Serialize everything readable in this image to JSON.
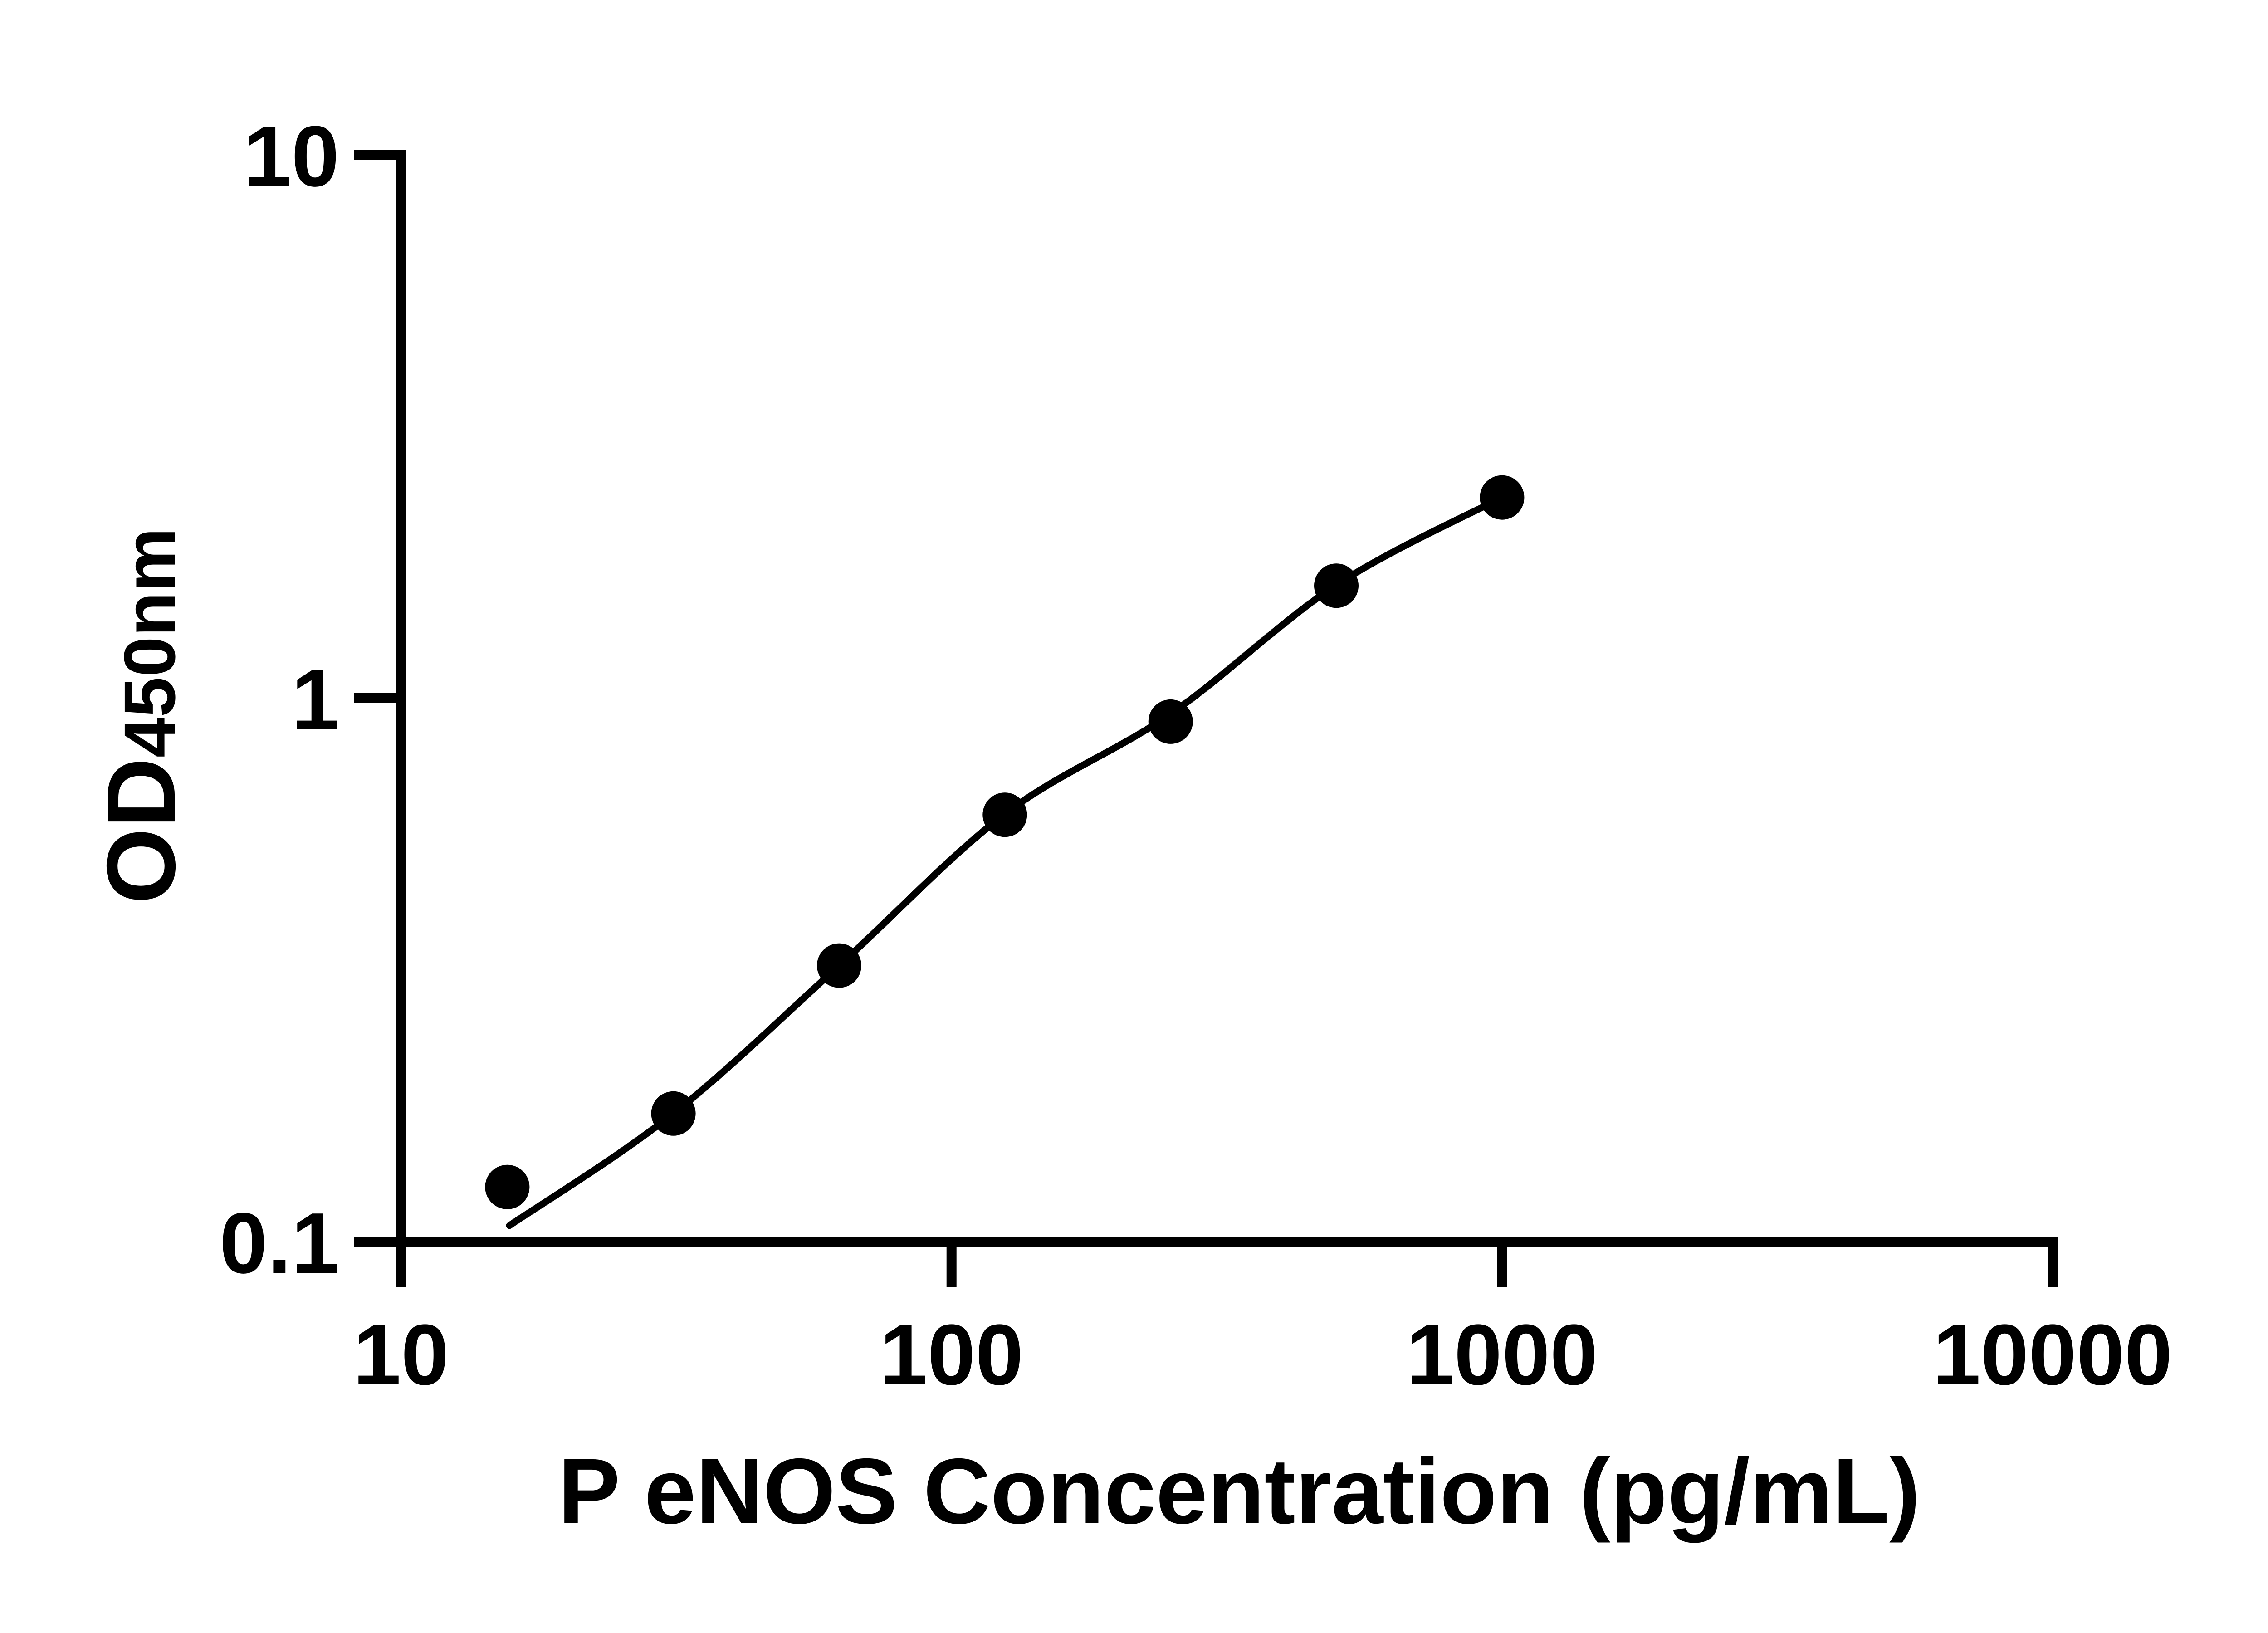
{
  "figure": {
    "background_color": "#ffffff",
    "ink_color": "#000000"
  },
  "chart_data": {
    "type": "scatter",
    "title": "",
    "xlabel": "P eNOS Concentration (pg/mL)",
    "ylabel": "OD450nm",
    "ylabel_main": "OD",
    "ylabel_sub": "450nm",
    "x_scale": "log",
    "y_scale": "log",
    "xlim": [
      10,
      10000
    ],
    "ylim": [
      0.1,
      10
    ],
    "grid": false,
    "legend": "none",
    "marker": "filled-circle",
    "marker_color": "#000000",
    "line_color": "#000000",
    "x_ticks": [
      {
        "value": 10,
        "label": "10"
      },
      {
        "value": 100,
        "label": "100"
      },
      {
        "value": 1000,
        "label": "1000"
      },
      {
        "value": 10000,
        "label": "10000"
      }
    ],
    "y_ticks": [
      {
        "value": 10,
        "label": "10"
      },
      {
        "value": 1,
        "label": "1"
      },
      {
        "value": 0.1,
        "label": "0.1"
      }
    ],
    "points": [
      {
        "x": 15.6,
        "y": 0.126
      },
      {
        "x": 31.25,
        "y": 0.172
      },
      {
        "x": 62.5,
        "y": 0.322
      },
      {
        "x": 125,
        "y": 0.61
      },
      {
        "x": 250,
        "y": 0.905
      },
      {
        "x": 500,
        "y": 1.61
      },
      {
        "x": 1000,
        "y": 2.34
      }
    ],
    "fit_curve": [
      {
        "x": 15.74,
        "y": 0.107
      },
      {
        "x": 31.25,
        "y": 0.172
      },
      {
        "x": 62.5,
        "y": 0.322
      },
      {
        "x": 125,
        "y": 0.612
      },
      {
        "x": 250,
        "y": 0.935
      },
      {
        "x": 500,
        "y": 1.615
      },
      {
        "x": 1000,
        "y": 2.34
      }
    ]
  }
}
